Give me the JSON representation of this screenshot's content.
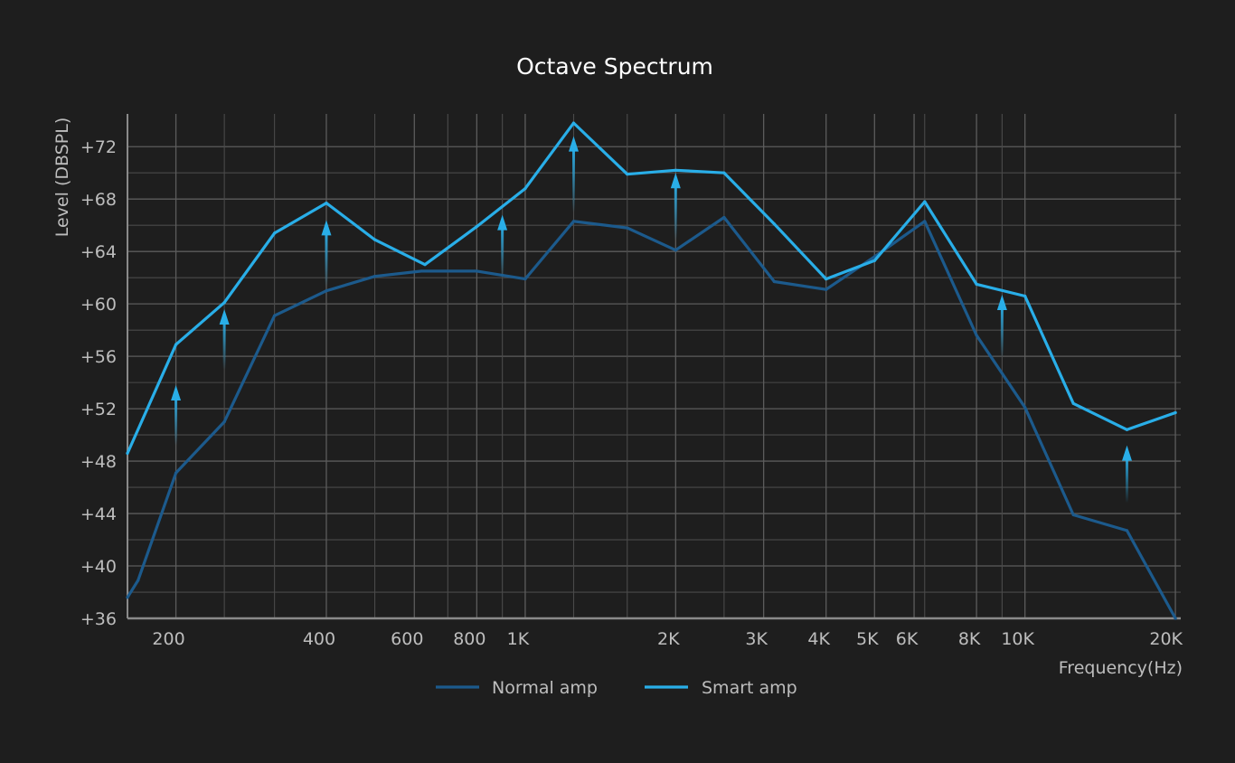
{
  "chart_data": {
    "type": "line",
    "title": "Octave Spectrum",
    "xlabel": "Frequency(Hz)",
    "ylabel": "Level (DBSPL)",
    "x_scale": "log",
    "xlim": [
      160,
      20500
    ],
    "ylim": [
      36,
      73.5
    ],
    "grid": true,
    "legend_position": "bottom-center",
    "x_ticks": [
      {
        "value": 200,
        "label": "200"
      },
      {
        "value": 400,
        "label": "400"
      },
      {
        "value": 600,
        "label": "600"
      },
      {
        "value": 800,
        "label": "800"
      },
      {
        "value": 1000,
        "label": "1K"
      },
      {
        "value": 2000,
        "label": "2K"
      },
      {
        "value": 3000,
        "label": "3K"
      },
      {
        "value": 4000,
        "label": "4K"
      },
      {
        "value": 5000,
        "label": "5K"
      },
      {
        "value": 6000,
        "label": "6K"
      },
      {
        "value": 8000,
        "label": "8K"
      },
      {
        "value": 10000,
        "label": "10K"
      },
      {
        "value": 20000,
        "label": "20K"
      }
    ],
    "x_minor_grid": [
      250,
      315,
      500,
      700,
      900,
      1250,
      1600,
      2500,
      6300,
      9000
    ],
    "y_ticks": [
      {
        "value": 72,
        "label": "+72"
      },
      {
        "value": 68,
        "label": "+68"
      },
      {
        "value": 64,
        "label": "+64"
      },
      {
        "value": 60,
        "label": "+60"
      },
      {
        "value": 56,
        "label": "+56"
      },
      {
        "value": 52,
        "label": "+52"
      },
      {
        "value": 48,
        "label": "+48"
      },
      {
        "value": 44,
        "label": "+44"
      },
      {
        "value": 40,
        "label": "+40"
      },
      {
        "value": 36,
        "label": "+36"
      }
    ],
    "y_minor_grid": [
      70,
      66,
      62,
      58,
      54,
      50,
      46,
      42,
      38
    ],
    "series": [
      {
        "name": "Normal amp",
        "color": "#1c5a8c",
        "x": [
          160,
          168,
          200,
          250,
          315,
          400,
          500,
          620,
          800,
          1000,
          1250,
          1600,
          2000,
          2500,
          3150,
          4000,
          5000,
          6300,
          8000,
          10000,
          12500,
          16000,
          20000
        ],
        "y": [
          37.6,
          38.9,
          47.1,
          51.0,
          59.1,
          61.0,
          62.1,
          62.5,
          62.5,
          61.9,
          66.3,
          65.8,
          64.1,
          66.6,
          61.7,
          61.1,
          63.6,
          66.3,
          57.6,
          52.1,
          43.9,
          42.7,
          36.0
        ]
      },
      {
        "name": "Smart amp",
        "color": "#29aee8",
        "x": [
          160,
          200,
          250,
          315,
          400,
          500,
          630,
          800,
          1000,
          1250,
          1600,
          2000,
          2500,
          3150,
          4000,
          5000,
          6300,
          8000,
          10000,
          12500,
          16000,
          20000
        ],
        "y": [
          48.6,
          56.9,
          60.1,
          65.4,
          67.7,
          64.9,
          63.0,
          65.9,
          68.8,
          73.8,
          69.9,
          70.2,
          70.0,
          66.1,
          61.9,
          63.3,
          67.8,
          61.5,
          60.6,
          52.4,
          50.4,
          51.7
        ]
      }
    ],
    "improvement_arrows": [
      {
        "x": 200,
        "from": 49.2,
        "to": 53.8
      },
      {
        "x": 250,
        "from": 55.0,
        "to": 59.6
      },
      {
        "x": 400,
        "from": 61.3,
        "to": 66.4
      },
      {
        "x": 900,
        "from": 62.0,
        "to": 66.8
      },
      {
        "x": 1250,
        "from": 67.0,
        "to": 72.8
      },
      {
        "x": 2000,
        "from": 64.9,
        "to": 70.0
      },
      {
        "x": 9000,
        "from": 55.9,
        "to": 60.7
      },
      {
        "x": 16000,
        "from": 44.8,
        "to": 49.2
      }
    ]
  }
}
